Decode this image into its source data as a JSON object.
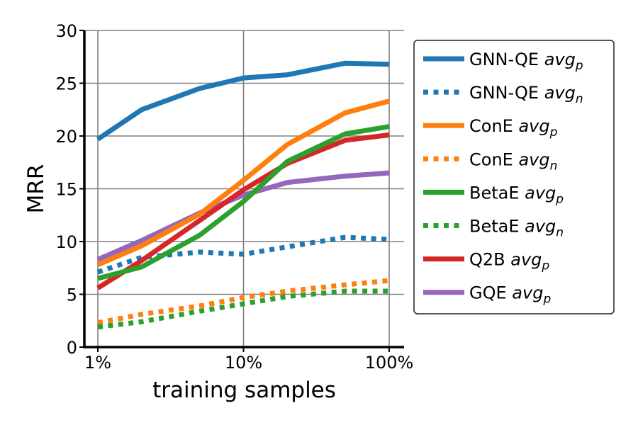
{
  "chart_data": {
    "type": "line",
    "xlabel": "training samples",
    "ylabel": "MRR",
    "x": [
      1,
      2,
      5,
      10,
      20,
      50,
      100
    ],
    "x_scale": "log",
    "x_ticks": [
      {
        "value": 1,
        "label": "1%"
      },
      {
        "value": 10,
        "label": "10%"
      },
      {
        "value": 100,
        "label": "100%"
      }
    ],
    "y_ticks": [
      "0",
      "5",
      "10",
      "15",
      "20",
      "25",
      "30"
    ],
    "ylim": [
      0,
      30
    ],
    "grid": true,
    "legend_position": "right",
    "series": [
      {
        "name": "GNN-QE",
        "subscript": "p",
        "color": "#1f77b4",
        "style": "solid",
        "values": [
          19.7,
          22.5,
          24.5,
          25.5,
          25.8,
          26.9,
          26.8
        ]
      },
      {
        "name": "GNN-QE",
        "subscript": "n",
        "color": "#1f77b4",
        "style": "dotted",
        "values": [
          7.1,
          8.5,
          9.0,
          8.8,
          9.5,
          10.4,
          10.2
        ]
      },
      {
        "name": "ConE",
        "subscript": "p",
        "color": "#ff7f0e",
        "style": "solid",
        "values": [
          7.8,
          9.6,
          12.6,
          15.8,
          19.2,
          22.2,
          23.3
        ]
      },
      {
        "name": "ConE",
        "subscript": "n",
        "color": "#ff7f0e",
        "style": "dotted",
        "values": [
          2.3,
          3.1,
          3.9,
          4.7,
          5.3,
          5.9,
          6.3
        ]
      },
      {
        "name": "BetaE",
        "subscript": "p",
        "color": "#2ca02c",
        "style": "solid",
        "values": [
          6.5,
          7.6,
          10.6,
          13.8,
          17.6,
          20.2,
          20.9
        ]
      },
      {
        "name": "BetaE",
        "subscript": "n",
        "color": "#2ca02c",
        "style": "dotted",
        "values": [
          1.9,
          2.4,
          3.4,
          4.1,
          4.8,
          5.3,
          5.3
        ]
      },
      {
        "name": "Q2B",
        "subscript": "p",
        "color": "#d62728",
        "style": "solid",
        "values": [
          5.6,
          8.2,
          12.0,
          14.9,
          17.4,
          19.6,
          20.1
        ]
      },
      {
        "name": "GQE",
        "subscript": "p",
        "color": "#9467bd",
        "style": "solid",
        "values": [
          8.3,
          10.1,
          12.7,
          14.4,
          15.6,
          16.2,
          16.5
        ]
      }
    ],
    "legend_prefix": "avg"
  }
}
